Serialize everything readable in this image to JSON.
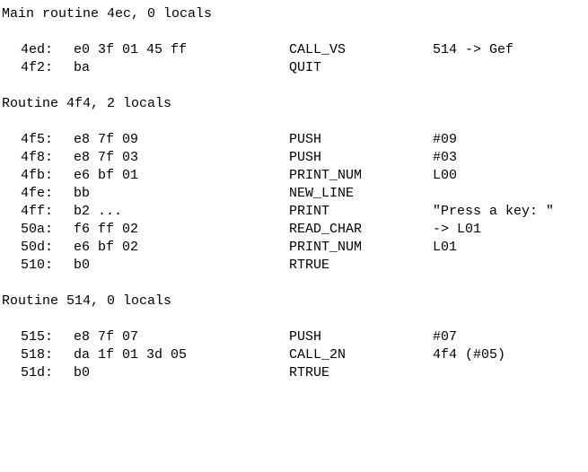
{
  "routines": [
    {
      "header": "Main routine 4ec, 0 locals",
      "instructions": [
        {
          "addr": "4ed:",
          "bytes": "e0 3f 01 45 ff",
          "op": "CALL_VS",
          "args": "514 -> Gef"
        },
        {
          "addr": "4f2:",
          "bytes": "ba",
          "op": "QUIT",
          "args": ""
        }
      ]
    },
    {
      "header": "Routine 4f4, 2 locals",
      "instructions": [
        {
          "addr": "4f5:",
          "bytes": "e8 7f 09",
          "op": "PUSH",
          "args": "#09"
        },
        {
          "addr": "4f8:",
          "bytes": "e8 7f 03",
          "op": "PUSH",
          "args": "#03"
        },
        {
          "addr": "4fb:",
          "bytes": "e6 bf 01",
          "op": "PRINT_NUM",
          "args": "L00"
        },
        {
          "addr": "4fe:",
          "bytes": "bb",
          "op": "NEW_LINE",
          "args": ""
        },
        {
          "addr": "4ff:",
          "bytes": "b2 ...",
          "op": "PRINT",
          "args": "\"Press a key: \""
        },
        {
          "addr": "50a:",
          "bytes": "f6 ff 02",
          "op": "READ_CHAR",
          "args": "-> L01"
        },
        {
          "addr": "50d:",
          "bytes": "e6 bf 02",
          "op": "PRINT_NUM",
          "args": "L01"
        },
        {
          "addr": "510:",
          "bytes": "b0",
          "op": "RTRUE",
          "args": ""
        }
      ]
    },
    {
      "header": "Routine 514, 0 locals",
      "instructions": [
        {
          "addr": "515:",
          "bytes": "e8 7f 07",
          "op": "PUSH",
          "args": "#07"
        },
        {
          "addr": "518:",
          "bytes": "da 1f 01 3d 05",
          "op": "CALL_2N",
          "args": "4f4 (#05)"
        },
        {
          "addr": "51d:",
          "bytes": "b0",
          "op": "RTRUE",
          "args": ""
        }
      ]
    }
  ]
}
